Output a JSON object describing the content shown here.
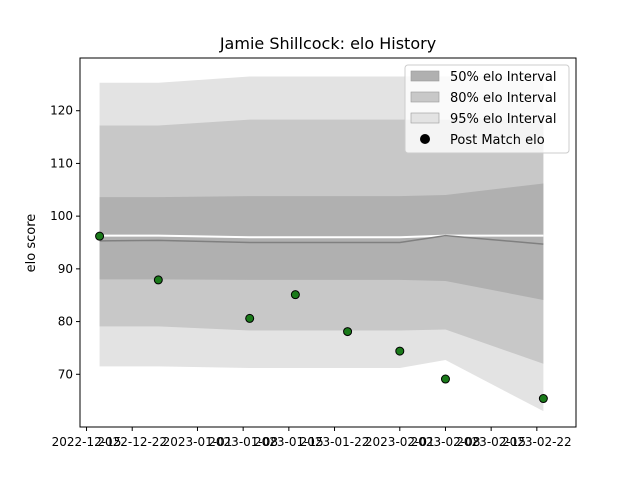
{
  "chart_data": {
    "type": "area",
    "title": "Jamie Shillcock: elo History",
    "xlabel": "",
    "ylabel": "elo score",
    "x_ticks": [
      "2022-12-15",
      "2022-12-22",
      "2023-01-01",
      "2023-01-08",
      "2023-01-15",
      "2023-01-22",
      "2023-02-01",
      "2023-02-08",
      "2023-02-15",
      "2023-02-22"
    ],
    "y_ticks": [
      70,
      80,
      90,
      100,
      110,
      120
    ],
    "ylim": [
      60,
      130
    ],
    "xlim": [
      "2022-12-14",
      "2023-02-28"
    ],
    "legend_position": "top-right",
    "x": [
      "2022-12-17",
      "2022-12-26",
      "2023-01-09",
      "2023-01-16",
      "2023-01-24",
      "2023-02-01",
      "2023-02-08",
      "2023-02-23"
    ],
    "bands": [
      {
        "name": "95% elo Interval",
        "color": "#e3e3e3",
        "upper": [
          125.3,
          125.3,
          126.5,
          126.5,
          126.5,
          126.5,
          126.5,
          126.5
        ],
        "lower": [
          71.5,
          71.5,
          71.2,
          71.2,
          71.2,
          71.2,
          72.7,
          63.0
        ]
      },
      {
        "name": "80% elo Interval",
        "color": "#c8c8c8",
        "upper": [
          117.2,
          117.2,
          118.3,
          118.3,
          118.3,
          118.3,
          118.3,
          118.3
        ],
        "lower": [
          79.1,
          79.1,
          78.3,
          78.3,
          78.3,
          78.3,
          78.5,
          72.0
        ]
      },
      {
        "name": "50% elo Interval",
        "color": "#b0b0b0",
        "upper": [
          103.6,
          103.6,
          103.8,
          103.8,
          103.8,
          103.8,
          104.0,
          106.2
        ],
        "lower": [
          88.0,
          88.0,
          87.9,
          87.9,
          87.9,
          87.9,
          87.7,
          84.1
        ]
      }
    ],
    "median": {
      "values": [
        95.3,
        95.4,
        95.0,
        95.0,
        95.0,
        95.0,
        96.3,
        94.7
      ],
      "color": "#808080"
    },
    "reference_line": {
      "values": [
        96.3,
        96.3,
        96.0,
        96.0,
        96.0,
        96.0,
        96.3,
        96.3
      ],
      "color": "#ffffff"
    },
    "post_match": {
      "name": "Post Match elo",
      "color": "#1a7a1a",
      "x": [
        "2022-12-17",
        "2022-12-26",
        "2023-01-09",
        "2023-01-16",
        "2023-01-24",
        "2023-02-01",
        "2023-02-08",
        "2023-02-23"
      ],
      "values": [
        96.2,
        87.9,
        80.6,
        85.1,
        78.1,
        74.4,
        69.1,
        65.4
      ]
    },
    "legend": [
      {
        "label": "50% elo Interval",
        "color": "#b0b0b0",
        "marker": "patch"
      },
      {
        "label": "80% elo Interval",
        "color": "#c8c8c8",
        "marker": "patch"
      },
      {
        "label": "95% elo Interval",
        "color": "#e3e3e3",
        "marker": "patch"
      },
      {
        "label": "Post Match elo",
        "color": "#000000",
        "marker": "dot"
      }
    ]
  }
}
